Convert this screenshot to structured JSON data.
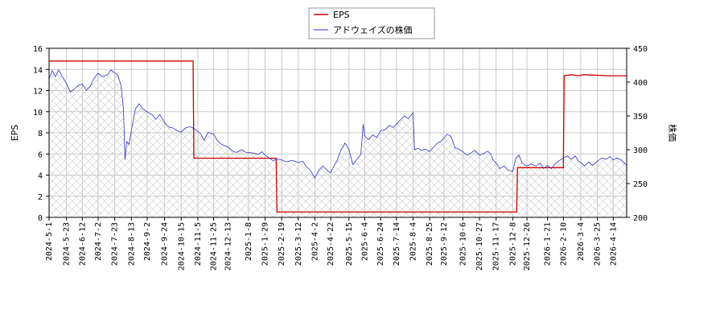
{
  "chart_data": {
    "type": "line",
    "title": "",
    "xlabel": "",
    "ylabel_left": "EPS",
    "ylabel_right": "株価",
    "ylim_left": [
      0,
      16
    ],
    "ylim_right": [
      200,
      450
    ],
    "yticks_left": [
      "0",
      "2",
      "4",
      "6",
      "8",
      "10",
      "12",
      "14",
      "16"
    ],
    "yticks_right": [
      "200",
      "250",
      "300",
      "350",
      "400",
      "450"
    ],
    "xticks": [
      "2024-5-1",
      "2024-5-23",
      "2024-6-12",
      "2024-7-2",
      "2024-7-23",
      "2024-8-13",
      "2024-9-2",
      "2024-9-24",
      "2024-10-15",
      "2024-11-5",
      "2024-11-25",
      "2024-12-13",
      "2025-1-8",
      "2025-1-29",
      "2025-2-19",
      "2025-3-12",
      "2025-4-2",
      "2025-4-22",
      "2025-5-15",
      "2025-6-4",
      "2025-6-24",
      "2025-7-14",
      "2025-8-4",
      "2025-8-25",
      "2025-9-12",
      "2025-10-6",
      "2025-10-27",
      "2025-11-17",
      "2025-12-8",
      "2025-12-26",
      "2026-1-21",
      "2026-2-10",
      "2026-3-4",
      "2026-3-25",
      "2026-4-14"
    ],
    "grid": true,
    "legend_position": "top-center",
    "series": [
      {
        "name": "EPS",
        "axis": "left",
        "color": "#cc0000",
        "step": true,
        "points": [
          [
            "2024-5-1",
            14.8
          ],
          [
            "2024-10-30",
            14.8
          ],
          [
            "2024-10-31",
            5.6
          ],
          [
            "2025-2-12",
            5.6
          ],
          [
            "2025-2-13",
            0.5
          ],
          [
            "2025-12-13",
            0.5
          ],
          [
            "2025-12-14",
            4.7
          ],
          [
            "2026-2-10",
            4.7
          ],
          [
            "2026-2-11",
            13.4
          ],
          [
            "2026-2-20",
            13.5
          ],
          [
            "2026-3-1",
            13.4
          ],
          [
            "2026-3-8",
            13.5
          ],
          [
            "2026-4-10",
            13.4
          ],
          [
            "2026-5-1",
            13.4
          ]
        ]
      },
      {
        "name": "アドウェイズの株価",
        "axis": "right",
        "color": "#3333cc",
        "step": false,
        "points": [
          [
            "2024-5-1",
            405
          ],
          [
            "2024-5-5",
            417
          ],
          [
            "2024-5-9",
            408
          ],
          [
            "2024-5-13",
            418
          ],
          [
            "2024-5-18",
            408
          ],
          [
            "2024-5-23",
            398
          ],
          [
            "2024-5-28",
            385
          ],
          [
            "2024-6-3",
            391
          ],
          [
            "2024-6-8",
            396
          ],
          [
            "2024-6-12",
            397
          ],
          [
            "2024-6-17",
            388
          ],
          [
            "2024-6-22",
            394
          ],
          [
            "2024-6-27",
            406
          ],
          [
            "2024-7-2",
            413
          ],
          [
            "2024-7-8",
            408
          ],
          [
            "2024-7-14",
            411
          ],
          [
            "2024-7-18",
            418
          ],
          [
            "2024-7-23",
            414
          ],
          [
            "2024-7-27",
            410
          ],
          [
            "2024-7-31",
            395
          ],
          [
            "2024-8-3",
            360
          ],
          [
            "2024-8-5",
            285
          ],
          [
            "2024-8-7",
            312
          ],
          [
            "2024-8-10",
            308
          ],
          [
            "2024-8-14",
            335
          ],
          [
            "2024-8-18",
            360
          ],
          [
            "2024-8-23",
            368
          ],
          [
            "2024-8-28",
            360
          ],
          [
            "2024-9-2",
            356
          ],
          [
            "2024-9-8",
            352
          ],
          [
            "2024-9-13",
            345
          ],
          [
            "2024-9-18",
            352
          ],
          [
            "2024-9-24",
            340
          ],
          [
            "2024-9-30",
            333
          ],
          [
            "2024-10-5",
            332
          ],
          [
            "2024-10-10",
            328
          ],
          [
            "2024-10-15",
            326
          ],
          [
            "2024-10-20",
            332
          ],
          [
            "2024-10-26",
            334
          ],
          [
            "2024-11-1",
            331
          ],
          [
            "2024-11-5",
            327
          ],
          [
            "2024-11-9",
            323
          ],
          [
            "2024-11-13",
            314
          ],
          [
            "2024-11-18",
            326
          ],
          [
            "2024-11-25",
            323
          ],
          [
            "2024-11-30",
            313
          ],
          [
            "2024-12-5",
            308
          ],
          [
            "2024-12-13",
            304
          ],
          [
            "2024-12-19",
            298
          ],
          [
            "2024-12-24",
            296
          ],
          [
            "2024-12-30",
            300
          ],
          [
            "2025-1-5",
            296
          ],
          [
            "2025-1-8",
            296
          ],
          [
            "2025-1-14",
            295
          ],
          [
            "2025-1-20",
            293
          ],
          [
            "2025-1-25",
            297
          ],
          [
            "2025-1-29",
            292
          ],
          [
            "2025-2-3",
            288
          ],
          [
            "2025-2-8",
            284
          ],
          [
            "2025-2-14",
            286
          ],
          [
            "2025-2-19",
            285
          ],
          [
            "2025-2-25",
            282
          ],
          [
            "2025-3-3",
            284
          ],
          [
            "2025-3-8",
            283
          ],
          [
            "2025-3-12",
            281
          ],
          [
            "2025-3-18",
            283
          ],
          [
            "2025-3-22",
            275
          ],
          [
            "2025-3-27",
            270
          ],
          [
            "2025-3-31",
            262
          ],
          [
            "2025-4-2",
            258
          ],
          [
            "2025-4-7",
            270
          ],
          [
            "2025-4-12",
            276
          ],
          [
            "2025-4-17",
            270
          ],
          [
            "2025-4-22",
            266
          ],
          [
            "2025-4-26",
            276
          ],
          [
            "2025-4-30",
            284
          ],
          [
            "2025-5-5",
            300
          ],
          [
            "2025-5-10",
            310
          ],
          [
            "2025-5-15",
            300
          ],
          [
            "2025-5-20",
            278
          ],
          [
            "2025-5-26",
            287
          ],
          [
            "2025-5-30",
            293
          ],
          [
            "2025-6-2",
            338
          ],
          [
            "2025-6-4",
            320
          ],
          [
            "2025-6-9",
            315
          ],
          [
            "2025-6-14",
            322
          ],
          [
            "2025-6-19",
            318
          ],
          [
            "2025-6-24",
            328
          ],
          [
            "2025-6-30",
            330
          ],
          [
            "2025-7-5",
            336
          ],
          [
            "2025-7-10",
            333
          ],
          [
            "2025-7-14",
            338
          ],
          [
            "2025-7-19",
            344
          ],
          [
            "2025-7-24",
            350
          ],
          [
            "2025-7-29",
            346
          ],
          [
            "2025-8-4",
            355
          ],
          [
            "2025-8-6",
            300
          ],
          [
            "2025-8-10",
            302
          ],
          [
            "2025-8-15",
            299
          ],
          [
            "2025-8-20",
            301
          ],
          [
            "2025-8-25",
            297
          ],
          [
            "2025-8-30",
            304
          ],
          [
            "2025-9-4",
            310
          ],
          [
            "2025-9-8",
            312
          ],
          [
            "2025-9-12",
            317
          ],
          [
            "2025-9-16",
            323
          ],
          [
            "2025-9-21",
            320
          ],
          [
            "2025-9-26",
            303
          ],
          [
            "2025-10-1",
            301
          ],
          [
            "2025-10-6",
            297
          ],
          [
            "2025-10-11",
            292
          ],
          [
            "2025-10-16",
            295
          ],
          [
            "2025-10-21",
            299
          ],
          [
            "2025-10-27",
            292
          ],
          [
            "2025-11-1",
            294
          ],
          [
            "2025-11-6",
            298
          ],
          [
            "2025-11-10",
            294
          ],
          [
            "2025-11-13",
            285
          ],
          [
            "2025-11-17",
            280
          ],
          [
            "2025-11-22",
            272
          ],
          [
            "2025-11-27",
            276
          ],
          [
            "2025-12-2",
            270
          ],
          [
            "2025-12-8",
            268
          ],
          [
            "2025-12-12",
            288
          ],
          [
            "2025-12-16",
            292
          ],
          [
            "2025-12-20",
            280
          ],
          [
            "2025-12-26",
            276
          ],
          [
            "2025-12-31",
            279
          ],
          [
            "2026-1-6",
            276
          ],
          [
            "2026-1-12",
            280
          ],
          [
            "2026-1-16",
            272
          ],
          [
            "2026-1-21",
            277
          ],
          [
            "2026-1-26",
            272
          ],
          [
            "2026-1-31",
            280
          ],
          [
            "2026-2-5",
            284
          ],
          [
            "2026-2-10",
            288
          ],
          [
            "2026-2-15",
            291
          ],
          [
            "2026-2-20",
            286
          ],
          [
            "2026-2-25",
            291
          ],
          [
            "2026-3-1",
            283
          ],
          [
            "2026-3-4",
            281
          ],
          [
            "2026-3-9",
            276
          ],
          [
            "2026-3-14",
            282
          ],
          [
            "2026-3-19",
            277
          ],
          [
            "2026-3-25",
            283
          ],
          [
            "2026-3-31",
            288
          ],
          [
            "2026-4-5",
            286
          ],
          [
            "2026-4-10",
            290
          ],
          [
            "2026-4-14",
            285
          ],
          [
            "2026-4-19",
            288
          ],
          [
            "2026-4-24",
            285
          ],
          [
            "2026-5-1",
            277
          ]
        ]
      }
    ]
  }
}
